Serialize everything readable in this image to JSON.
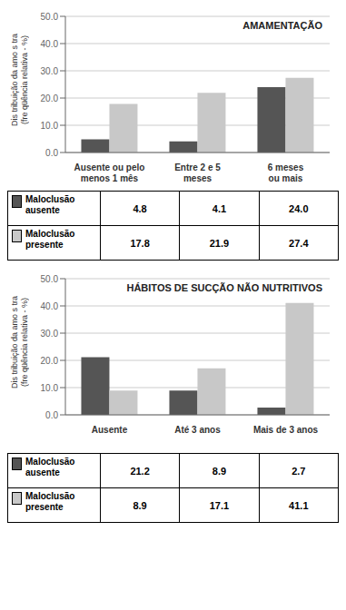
{
  "chart_data": [
    {
      "type": "bar",
      "title": "AMAMENTAÇÃO",
      "categories": [
        "Ausente ou pelo\nmenos 1 mês",
        "Entre 2 e 5\nmeses",
        "6 meses\nou mais"
      ],
      "series": [
        {
          "name": "Maloclusão\nausente",
          "color": "#555555",
          "values": [
            4.8,
            4.1,
            24.0
          ],
          "value_labels": [
            "4.8",
            "4.1",
            "24.0"
          ]
        },
        {
          "name": "Maloclusão\npresente",
          "color": "#c8c8c8",
          "values": [
            17.8,
            21.9,
            27.4
          ],
          "value_labels": [
            "17.8",
            "21.9",
            "27.4"
          ]
        }
      ],
      "ylabel": "Dis tribuição da amo s tra\n(fre qüência relativa - %)",
      "ylim": [
        0,
        50
      ],
      "yticks": [
        {
          "value": 0,
          "label": "0.0"
        },
        {
          "value": 10,
          "label": "10.0"
        },
        {
          "value": 20,
          "label": "20.0"
        },
        {
          "value": 30,
          "label": "30.0"
        },
        {
          "value": 40,
          "label": "40.0"
        },
        {
          "value": 50,
          "label": "50.0"
        }
      ],
      "grid": true
    },
    {
      "type": "bar",
      "title": "HÁBITOS DE SUCÇÃO NÃO NUTRITIVOS",
      "categories": [
        "Ausente",
        "Até 3 anos",
        "Mais de 3 anos"
      ],
      "series": [
        {
          "name": "Maloclusão\nausente",
          "color": "#555555",
          "values": [
            21.2,
            8.9,
            2.7
          ],
          "value_labels": [
            "21.2",
            "8.9",
            "2.7"
          ]
        },
        {
          "name": "Maloclusão\npresente",
          "color": "#c8c8c8",
          "values": [
            8.9,
            17.1,
            41.1
          ],
          "value_labels": [
            "8.9",
            "17.1",
            "41.1"
          ]
        }
      ],
      "ylabel": "Dis tribuição da amo s tra\n(fre qüência relativa - %)",
      "ylim": [
        0,
        50
      ],
      "yticks": [
        {
          "value": 0,
          "label": "0.0"
        },
        {
          "value": 10,
          "label": "10.0"
        },
        {
          "value": 20,
          "label": "20.0"
        },
        {
          "value": 30,
          "label": "30.0"
        },
        {
          "value": 40,
          "label": "40.0"
        },
        {
          "value": 50,
          "label": "50.0"
        }
      ],
      "grid": true
    }
  ]
}
